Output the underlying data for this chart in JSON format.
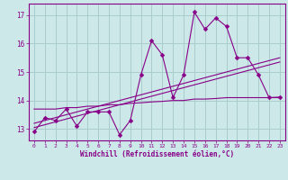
{
  "xlabel": "Windchill (Refroidissement éolien,°C)",
  "bg_color": "#cce8e8",
  "line_color": "#880088",
  "grid_color": "#aacccc",
  "x_values": [
    0,
    1,
    2,
    3,
    4,
    5,
    6,
    7,
    8,
    9,
    10,
    11,
    12,
    13,
    14,
    15,
    16,
    17,
    18,
    19,
    20,
    21,
    22,
    23
  ],
  "y_main": [
    12.9,
    13.4,
    13.3,
    13.7,
    13.1,
    13.6,
    13.6,
    13.6,
    12.8,
    13.3,
    14.9,
    16.1,
    15.6,
    14.1,
    14.9,
    17.1,
    16.5,
    16.9,
    16.6,
    15.5,
    15.5,
    14.9,
    14.1,
    14.1
  ],
  "y_linear1": [
    13.05,
    13.15,
    13.25,
    13.35,
    13.45,
    13.55,
    13.65,
    13.75,
    13.85,
    13.95,
    14.05,
    14.15,
    14.25,
    14.35,
    14.45,
    14.55,
    14.65,
    14.75,
    14.85,
    14.95,
    15.05,
    15.15,
    15.25,
    15.35
  ],
  "y_linear2": [
    13.2,
    13.3,
    13.4,
    13.5,
    13.6,
    13.7,
    13.8,
    13.9,
    14.0,
    14.1,
    14.2,
    14.3,
    14.4,
    14.5,
    14.6,
    14.7,
    14.8,
    14.9,
    15.0,
    15.1,
    15.2,
    15.3,
    15.4,
    15.5
  ],
  "y_flat": [
    13.7,
    13.7,
    13.7,
    13.75,
    13.75,
    13.8,
    13.8,
    13.85,
    13.85,
    13.9,
    13.92,
    13.95,
    13.97,
    14.0,
    14.0,
    14.05,
    14.05,
    14.07,
    14.1,
    14.1,
    14.1,
    14.1,
    14.1,
    14.12
  ],
  "ylim": [
    12.6,
    17.4
  ],
  "yticks": [
    13,
    14,
    15,
    16,
    17
  ],
  "xticks": [
    0,
    1,
    2,
    3,
    4,
    5,
    6,
    7,
    8,
    9,
    10,
    11,
    12,
    13,
    14,
    15,
    16,
    17,
    18,
    19,
    20,
    21,
    22,
    23
  ]
}
